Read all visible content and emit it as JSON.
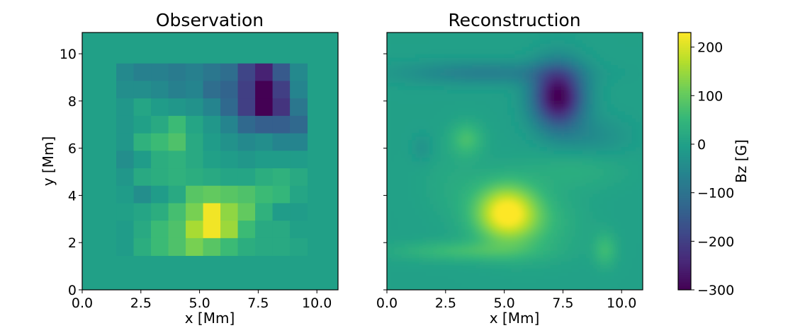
{
  "chart_data": [
    {
      "type": "heatmap",
      "title": "Observation",
      "xlabel": "x [Mm]",
      "ylabel": "y [Mm]",
      "xlim": [
        0,
        10.9
      ],
      "ylim": [
        0,
        10.9
      ],
      "x_ticks": [
        "0.0",
        "2.5",
        "5.0",
        "7.5",
        "10.0"
      ],
      "x_tick_values": [
        0,
        2.5,
        5,
        7.5,
        10
      ],
      "y_ticks": [
        "0",
        "2",
        "4",
        "6",
        "8",
        "10"
      ],
      "y_tick_values": [
        0,
        2,
        4,
        6,
        8,
        10
      ],
      "grid_origin": [
        1.45,
        1.45
      ],
      "cell_size": 0.74,
      "background_value": 0,
      "rows_top_to_bottom": [
        [
          -50,
          -70,
          -70,
          -80,
          -70,
          -90,
          -110,
          -190,
          -250,
          -150,
          -50
        ],
        [
          -40,
          -40,
          -50,
          -70,
          -60,
          -110,
          -130,
          -200,
          -300,
          -200,
          -60
        ],
        [
          -20,
          10,
          -10,
          -20,
          -30,
          -60,
          -120,
          -200,
          -300,
          -220,
          -90
        ],
        [
          -20,
          0,
          20,
          60,
          10,
          -20,
          -60,
          -120,
          -140,
          -140,
          -120
        ],
        [
          -20,
          40,
          60,
          80,
          20,
          -10,
          -30,
          -50,
          -40,
          -60,
          -60
        ],
        [
          -40,
          -10,
          30,
          40,
          20,
          0,
          -10,
          -20,
          -10,
          -10,
          -10
        ],
        [
          -20,
          20,
          30,
          40,
          30,
          20,
          10,
          10,
          30,
          40,
          20
        ],
        [
          -10,
          -40,
          -10,
          20,
          90,
          100,
          90,
          80,
          60,
          50,
          10
        ],
        [
          0,
          10,
          30,
          70,
          120,
          220,
          140,
          100,
          40,
          -10,
          -10
        ],
        [
          -10,
          20,
          60,
          80,
          160,
          220,
          150,
          60,
          20,
          20,
          0
        ],
        [
          -10,
          30,
          60,
          80,
          120,
          90,
          60,
          30,
          20,
          20,
          10
        ]
      ]
    },
    {
      "type": "heatmap",
      "title": "Reconstruction",
      "xlabel": "x [Mm]",
      "xlim": [
        0,
        10.9
      ],
      "ylim": [
        0,
        10.9
      ],
      "x_ticks": [
        "0.0",
        "2.5",
        "5.0",
        "7.5",
        "10.0"
      ],
      "x_tick_values": [
        0,
        2.5,
        5,
        7.5,
        10
      ],
      "y_tick_values": [
        0,
        2,
        4,
        6,
        8,
        10
      ],
      "background_value": 0,
      "components": [
        {
          "x": 7.3,
          "y": 8.2,
          "sx": 0.75,
          "sy": 0.9,
          "amp": -300
        },
        {
          "x": 4.2,
          "y": 9.2,
          "sx": 2.5,
          "sy": 0.35,
          "amp": -70
        },
        {
          "x": 8.7,
          "y": 6.5,
          "sx": 1.1,
          "sy": 0.6,
          "amp": -40
        },
        {
          "x": 1.5,
          "y": 6.0,
          "sx": 0.3,
          "sy": 0.4,
          "amp": -30
        },
        {
          "x": 5.1,
          "y": 3.3,
          "sx": 0.9,
          "sy": 0.8,
          "amp": 220
        },
        {
          "x": 6.0,
          "y": 2.8,
          "sx": 1.5,
          "sy": 1.0,
          "amp": 50
        },
        {
          "x": 3.4,
          "y": 6.4,
          "sx": 0.5,
          "sy": 0.5,
          "amp": 70
        },
        {
          "x": 3.2,
          "y": 1.65,
          "sx": 2.0,
          "sy": 0.3,
          "amp": 60
        },
        {
          "x": 9.3,
          "y": 1.7,
          "sx": 0.35,
          "sy": 0.5,
          "amp": 60
        },
        {
          "x": 8.0,
          "y": 5.1,
          "sx": 1.5,
          "sy": 0.6,
          "amp": 30
        },
        {
          "x": 2.9,
          "y": 4.5,
          "sx": 1.0,
          "sy": 1.0,
          "amp": 20
        }
      ]
    }
  ],
  "colorbar": {
    "label": "Bz [G]",
    "min": -300,
    "max": 230,
    "ticks": [
      "200",
      "100",
      "0",
      "−100",
      "−200",
      "−300"
    ],
    "tick_values": [
      200,
      100,
      0,
      -100,
      -200,
      -300
    ],
    "colormap": "viridis",
    "colormap_stops": [
      "#440154",
      "#482878",
      "#3e4989",
      "#31688e",
      "#26828e",
      "#1f9e89",
      "#35b779",
      "#6ece58",
      "#b5de2b",
      "#fde725"
    ]
  }
}
